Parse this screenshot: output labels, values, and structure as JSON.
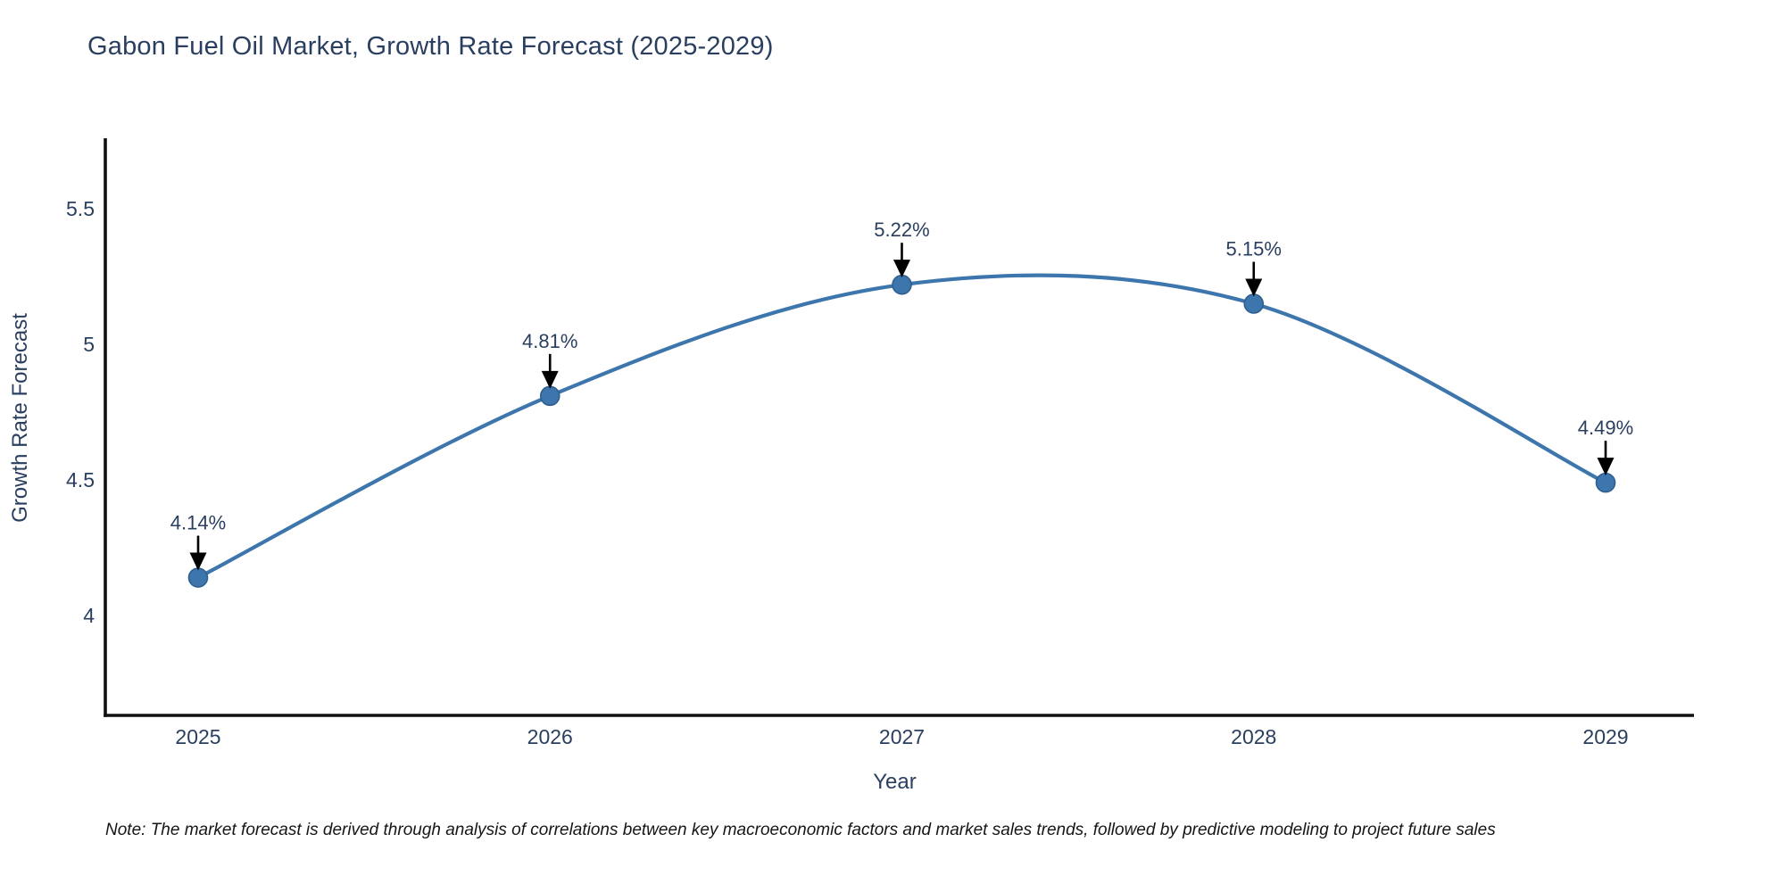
{
  "title": "Gabon Fuel Oil Market, Growth Rate Forecast (2025-2029)",
  "note": "Note: The market forecast is derived through analysis of correlations between key macroeconomic factors and market sales trends, followed by predictive modeling to project future sales",
  "chart_data": {
    "type": "line",
    "title": "Gabon Fuel Oil Market, Growth Rate Forecast (2025-2029)",
    "x": [
      "2025",
      "2026",
      "2027",
      "2028",
      "2029"
    ],
    "series": [
      {
        "name": "Growth Rate Forecast",
        "values": [
          4.14,
          4.81,
          5.22,
          5.15,
          4.49
        ]
      }
    ],
    "point_labels": [
      "4.14%",
      "4.81%",
      "5.22%",
      "5.15%",
      "4.49%"
    ],
    "xlabel": "Year",
    "ylabel": "Growth Rate Forecast",
    "yticks": [
      4,
      4.5,
      5,
      5.5
    ],
    "ytick_labels": [
      "4",
      "4.5",
      "5",
      "5.5"
    ],
    "ylim": [
      3.632,
      5.76
    ],
    "grid": false,
    "line_shape": "spline",
    "legend": "none",
    "colors": {
      "line": "#3d76ad",
      "marker": "#3d76ad",
      "marker_edge": "#2f5f8f",
      "arrow": "#000000",
      "text": "#2a3f5f",
      "axis": "#101010"
    }
  }
}
